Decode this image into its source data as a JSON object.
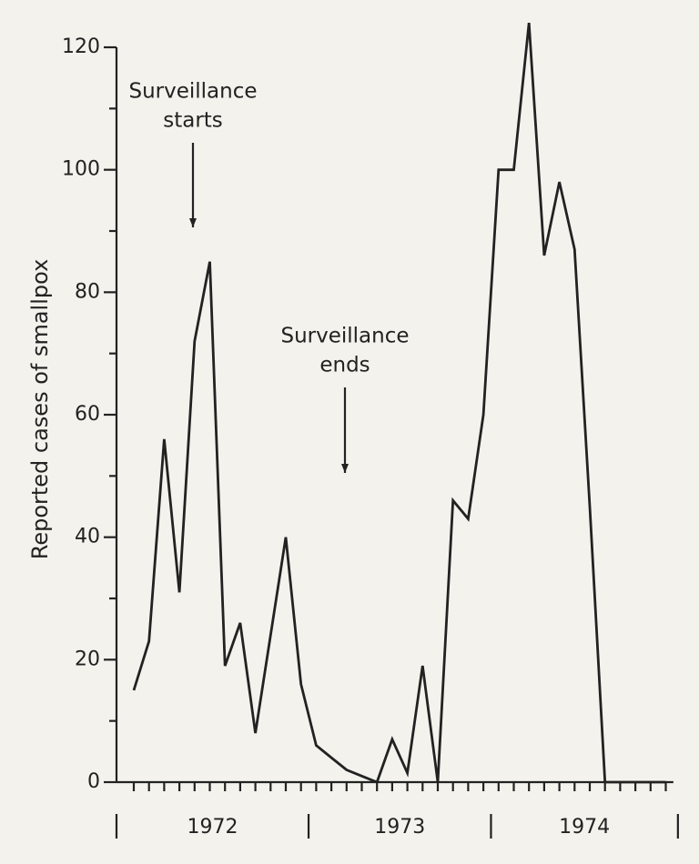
{
  "chart_data": {
    "type": "line",
    "y_label": "Reported cases of smallpox",
    "categories": [
      null,
      null,
      null,
      null,
      null,
      null,
      null,
      null,
      null,
      null,
      null,
      null,
      null,
      null,
      null,
      null,
      null,
      null,
      null,
      null,
      null,
      null,
      null,
      null,
      null,
      null,
      null,
      null,
      null,
      null,
      null,
      null,
      null,
      null,
      null,
      null
    ],
    "groups": [
      "1972",
      "1973",
      "1974"
    ],
    "series": [
      {
        "color": "#222222",
        "values": [
          15,
          23,
          56,
          31,
          72,
          85,
          19,
          26,
          8,
          24,
          40,
          16,
          6,
          4,
          2,
          1,
          0,
          7,
          1.5,
          19,
          0,
          46,
          43,
          60,
          100,
          100,
          124,
          86,
          98,
          87,
          45,
          0,
          0,
          0,
          0,
          0
        ]
      }
    ],
    "ylim": [
      0,
      120
    ],
    "yticks": [
      0,
      20,
      40,
      60,
      80,
      100,
      120
    ],
    "annotations": [
      {
        "text": [
          "Surveillance",
          "starts"
        ]
      },
      {
        "text": [
          "Surveillance",
          "ends"
        ]
      }
    ]
  }
}
